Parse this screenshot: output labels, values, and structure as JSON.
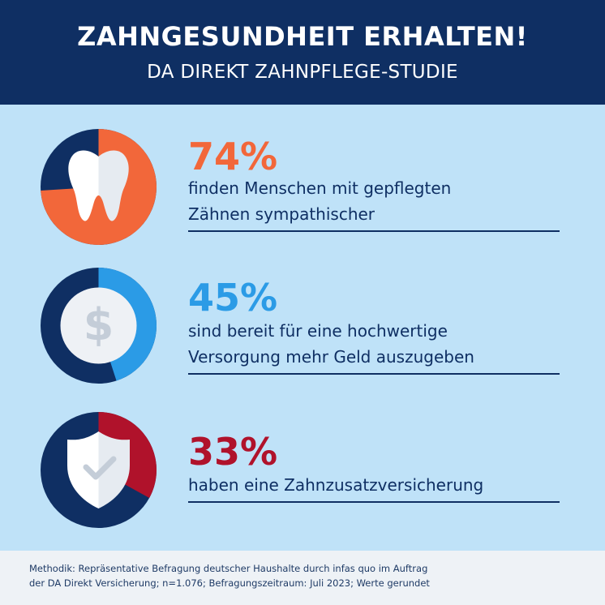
{
  "header": {
    "title": "ZAHNGESUNDHEIT ERHALTEN!",
    "subtitle": "DA DIREKT ZAHNPFLEGE-STUDIE"
  },
  "colors": {
    "navy": "#0f2f63",
    "background": "#bfe2f8",
    "orange": "#f2673a",
    "blue": "#2b9be6",
    "red": "#b0122b",
    "icon": "#eef1f5"
  },
  "stats": [
    {
      "value": 74,
      "percent": "74%",
      "line1": "finden Menschen mit gepflegten",
      "line2": "Zähnen sympathischer",
      "icon": "tooth-icon",
      "color": "#f2673a"
    },
    {
      "value": 45,
      "percent": "45%",
      "line1": "sind bereit für eine hochwertige",
      "line2": "Versorgung mehr Geld auszugeben",
      "icon": "dollar-coin-icon",
      "color": "#2b9be6"
    },
    {
      "value": 33,
      "percent": "33%",
      "line1": "haben eine Zahnzusatzversicherung",
      "line2": "",
      "icon": "shield-check-icon",
      "color": "#b0122b"
    }
  ],
  "footer": {
    "line1": "Methodik: Repräsentative Befragung deutscher Haushalte durch infas quo im Auftrag",
    "line2": "der DA Direkt Versicherung; n=1.076; Befragungszeitraum: Juli 2023; Werte gerundet"
  }
}
